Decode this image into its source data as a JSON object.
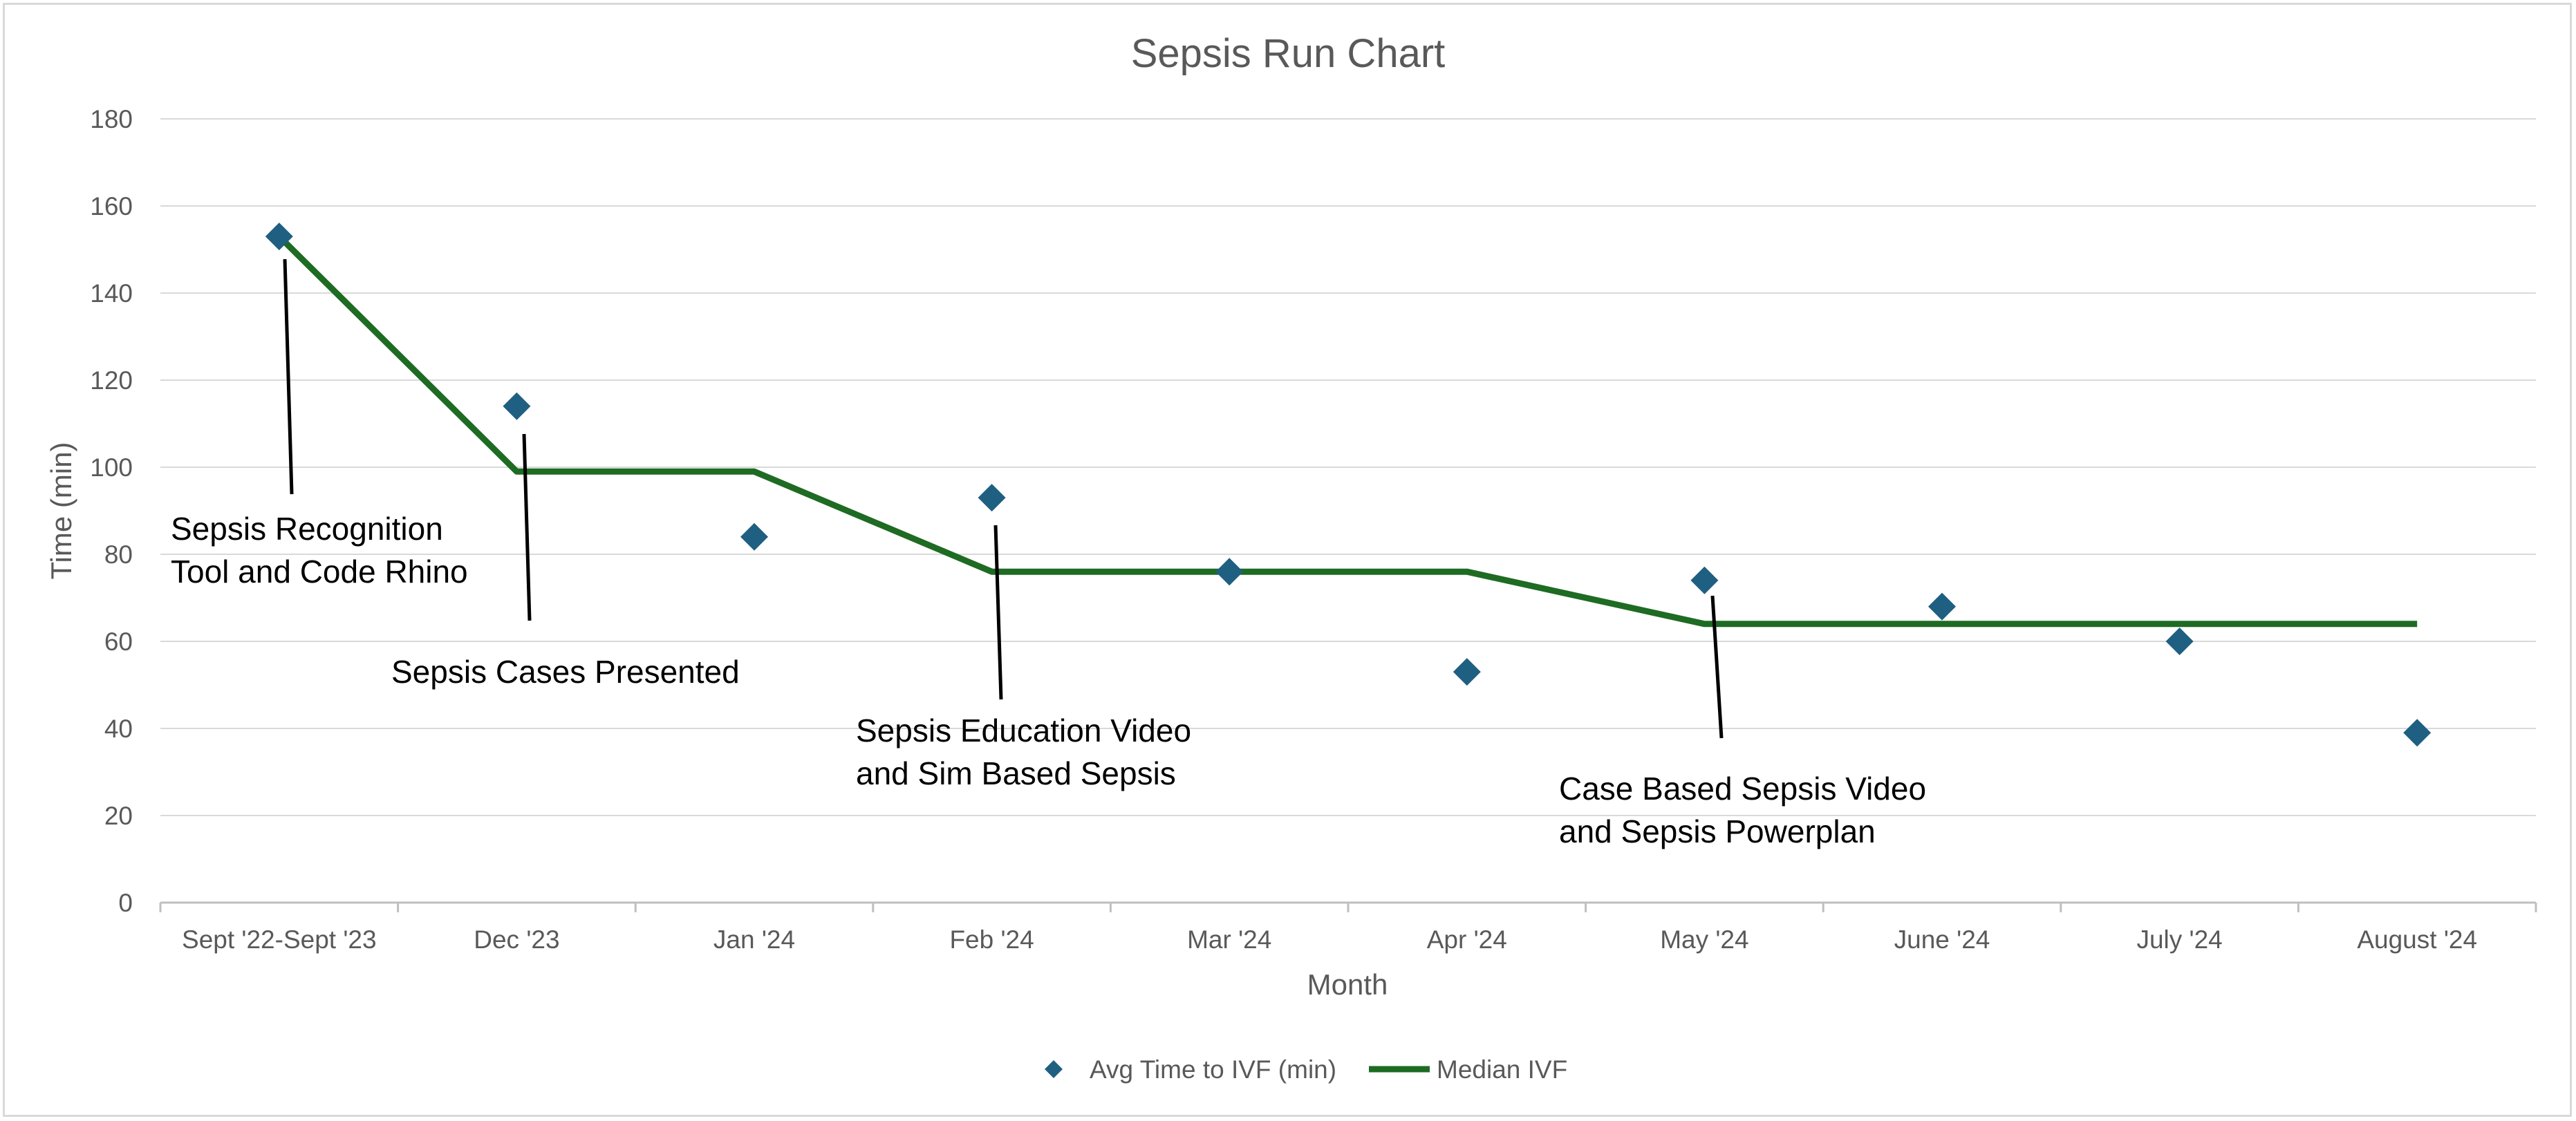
{
  "chart_data": {
    "type": "line",
    "title": "Sepsis Run Chart",
    "xlabel": "Month",
    "ylabel": "Time (min)",
    "ylim": [
      0,
      180
    ],
    "yticks": [
      0,
      20,
      40,
      60,
      80,
      100,
      120,
      140,
      160,
      180
    ],
    "grid": true,
    "legend_position": "bottom",
    "categories": [
      "Sept '22-Sept '23",
      "Dec '23",
      "Jan '24",
      "Feb '24",
      "Mar '24",
      "Apr '24",
      "May '24",
      "June '24",
      "July '24",
      "August '24"
    ],
    "series": [
      {
        "name": "Avg Time to IVF (min)",
        "marker": "diamond",
        "color": "#1f5f82",
        "values": [
          153,
          114,
          84,
          93,
          76,
          53,
          74,
          68,
          60,
          39
        ]
      },
      {
        "name": "Median IVF",
        "marker": "line",
        "color": "#1e6b23",
        "values": [
          153,
          99,
          99,
          76,
          76,
          76,
          64,
          64,
          64,
          64
        ]
      }
    ],
    "annotations": [
      {
        "lines": [
          "Sepsis Recognition",
          "Tool and Code Rhino"
        ],
        "category_index": 0
      },
      {
        "lines": [
          "Sepsis Cases Presented"
        ],
        "category_index": 1
      },
      {
        "lines": [
          "Sepsis Education Video",
          "and Sim Based Sepsis"
        ],
        "category_index": 3
      },
      {
        "lines": [
          "Case Based Sepsis Video",
          "and Sepsis Powerplan"
        ],
        "category_index": 6
      }
    ]
  }
}
